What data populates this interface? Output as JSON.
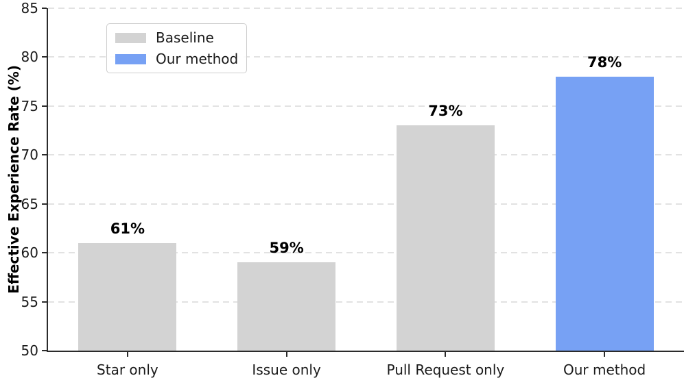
{
  "chart_data": {
    "type": "bar",
    "categories": [
      "Star only",
      "Issue only",
      "Pull Request only",
      "Our method"
    ],
    "values": [
      61,
      59,
      73,
      78
    ],
    "bar_labels": [
      "61%",
      "59%",
      "73%",
      "78%"
    ],
    "bar_colors": [
      "#d3d3d3",
      "#d3d3d3",
      "#d3d3d3",
      "#77a1f4"
    ],
    "title": "",
    "xlabel": "",
    "ylabel": "Effective Experience Rate (%)",
    "ylim": [
      50,
      85
    ],
    "yticks": [
      50,
      55,
      60,
      65,
      70,
      75,
      80,
      85
    ],
    "grid": "horizontal-dashed",
    "legend": {
      "position": "upper-left",
      "entries": [
        {
          "label": "Baseline",
          "color": "#d3d3d3"
        },
        {
          "label": "Our method",
          "color": "#77a1f4"
        }
      ]
    }
  },
  "colors": {
    "bar_baseline": "#d3d3d3",
    "bar_highlight": "#77a1f4",
    "gridline": "#e2e2e2",
    "spine": "#2b2b2b",
    "text": "#1a1a1a"
  }
}
